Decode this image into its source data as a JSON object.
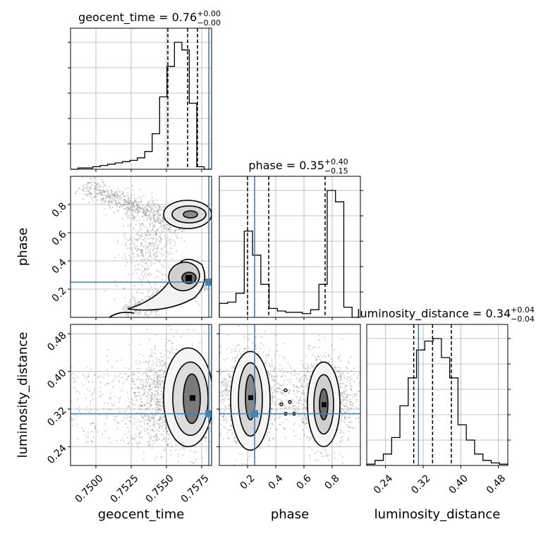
{
  "chart_data": {
    "type": "corner",
    "parameters": [
      {
        "name": "geocent_time",
        "xlabel": "geocent_time",
        "title": {
          "prefix": "geocent_time = ",
          "value": "0.76",
          "plus": "+0.00",
          "minus": "−0.00"
        },
        "ylim_hist": [
          0,
          1
        ],
        "lim": [
          0.7482,
          0.7582
        ],
        "ticks": [
          "0.7500",
          "0.7525",
          "0.7550",
          "0.7575"
        ],
        "tick_values": [
          0.75,
          0.7525,
          0.755,
          0.7575
        ],
        "quantiles": [
          0.7551,
          0.7565,
          0.7572
        ],
        "truth": 0.758,
        "hist_bins": [
          0.0,
          0.01,
          0.01,
          0.02,
          0.03,
          0.04,
          0.05,
          0.06,
          0.07,
          0.09,
          0.14,
          0.28,
          0.57,
          0.81,
          1.0,
          0.94,
          0.52,
          0.02,
          0.0
        ]
      },
      {
        "name": "phase",
        "xlabel": "phase",
        "ylabel": "phase",
        "title": {
          "prefix": "phase = ",
          "value": "0.35",
          "plus": "+0.40",
          "minus": "−0.15"
        },
        "lim": [
          0.0,
          1.0
        ],
        "ticks": [
          "0.2",
          "0.4",
          "0.6",
          "0.8"
        ],
        "tick_values": [
          0.2,
          0.4,
          0.6,
          0.8
        ],
        "quantiles": [
          0.2,
          0.35,
          0.75
        ],
        "truth": 0.25,
        "hist_bins": [
          0.11,
          0.12,
          0.19,
          0.68,
          0.49,
          0.26,
          0.07,
          0.05,
          0.04,
          0.04,
          0.03,
          0.06,
          0.26,
          1.0,
          0.91,
          0.08,
          0.0
        ]
      },
      {
        "name": "luminosity_distance",
        "xlabel": "luminosity_distance",
        "ylabel": "luminosity_distance",
        "title": {
          "prefix": "luminosity_distance = ",
          "value": "0.34",
          "plus": "+0.04",
          "minus": "−0.04"
        },
        "lim": [
          0.2,
          0.5
        ],
        "ticks": [
          "0.24",
          "0.32",
          "0.40",
          "0.48"
        ],
        "tick_values": [
          0.24,
          0.32,
          0.4,
          0.48
        ],
        "quantiles": [
          0.3,
          0.34,
          0.38
        ],
        "truth": 0.31,
        "hist_bins": [
          0.01,
          0.04,
          0.09,
          0.22,
          0.47,
          0.69,
          0.91,
          0.98,
          1.0,
          0.85,
          0.69,
          0.32,
          0.2,
          0.09,
          0.04,
          0.02,
          0.01
        ]
      }
    ],
    "truth_color": "#4682b4",
    "hist_color": "#000000",
    "scatter_color": "#808080",
    "grid": true,
    "pairs": [
      {
        "x": "geocent_time",
        "y": "phase",
        "truth_point": [
          0.758,
          0.25
        ],
        "peaks": [
          [
            0.7568,
            0.22
          ],
          [
            0.7568,
            0.75
          ]
        ]
      },
      {
        "x": "geocent_time",
        "y": "luminosity_distance",
        "truth_point": [
          0.758,
          0.31
        ],
        "peaks": [
          [
            0.7569,
            0.345
          ]
        ]
      },
      {
        "x": "phase",
        "y": "luminosity_distance",
        "truth_point": [
          0.25,
          0.31
        ],
        "peaks": [
          [
            0.22,
            0.345
          ],
          [
            0.74,
            0.33
          ]
        ]
      }
    ]
  }
}
